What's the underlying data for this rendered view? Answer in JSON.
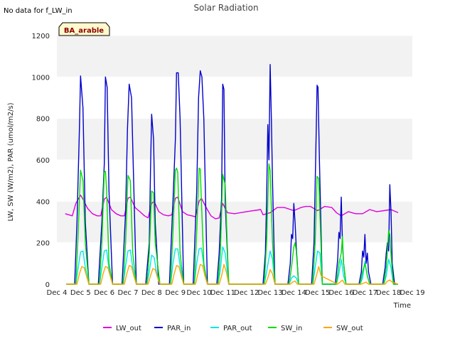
{
  "chart_data": {
    "type": "line",
    "title": "Solar Radiation",
    "no_data_text": "No data for f_LW_in",
    "badge": "BA_arable",
    "xlabel": "Time",
    "ylabel": "LW, SW (W/m2), PAR (umol/m2/s)",
    "xlim": [
      4,
      19
    ],
    "ylim": [
      0,
      1200
    ],
    "x_ticks": [
      4,
      5,
      6,
      7,
      8,
      9,
      10,
      11,
      12,
      13,
      14,
      15,
      16,
      17,
      18,
      19
    ],
    "x_tick_labels": [
      "Dec 4",
      "Dec 5",
      "Dec 6",
      "Dec 7",
      "Dec 8",
      "Dec 9",
      "Dec 10",
      "Dec 11",
      "Dec 12",
      "Dec 13",
      "Dec 14",
      "Dec 15",
      "Dec 16",
      "Dec 17",
      "Dec 18",
      "Dec 19"
    ],
    "y_ticks": [
      0,
      200,
      400,
      600,
      800,
      1000,
      1200
    ],
    "y_tick_labels": [
      "0",
      "200",
      "400",
      "600",
      "800",
      "1000",
      "1200"
    ],
    "colors": {
      "LW_out": "#dd00dd",
      "PAR_in": "#0000cc",
      "PAR_out": "#00e5ee",
      "SW_in": "#00dd00",
      "SW_out": "#ffa500"
    },
    "series": [
      {
        "name": "LW_out",
        "x": [
          4.35,
          4.5,
          4.65,
          4.8,
          5.0,
          5.1,
          5.3,
          5.5,
          5.7,
          5.85,
          6.0,
          6.1,
          6.3,
          6.5,
          6.7,
          6.85,
          7.0,
          7.1,
          7.3,
          7.5,
          7.7,
          7.85,
          8.0,
          8.1,
          8.3,
          8.5,
          8.7,
          8.85,
          9.0,
          9.1,
          9.3,
          9.5,
          9.7,
          9.85,
          10.0,
          10.1,
          10.3,
          10.5,
          10.7,
          10.85,
          11.0,
          11.2,
          11.5,
          12.0,
          12.6,
          12.7,
          13.0,
          13.3,
          13.6,
          14.0,
          14.3,
          14.5,
          14.7,
          15.0,
          15.3,
          15.6,
          15.8,
          16.0,
          16.3,
          16.6,
          16.9,
          17.2,
          17.5,
          17.8,
          18.1,
          18.4
        ],
        "y": [
          340,
          335,
          330,
          390,
          430,
          410,
          365,
          340,
          330,
          330,
          410,
          420,
          360,
          340,
          330,
          330,
          415,
          420,
          370,
          350,
          330,
          320,
          390,
          400,
          350,
          335,
          330,
          335,
          415,
          420,
          350,
          335,
          330,
          325,
          400,
          415,
          370,
          330,
          315,
          320,
          390,
          345,
          340,
          350,
          360,
          335,
          345,
          370,
          370,
          355,
          370,
          375,
          375,
          355,
          375,
          370,
          345,
          330,
          350,
          340,
          340,
          360,
          350,
          355,
          360,
          345
        ]
      },
      {
        "name": "PAR_in",
        "x": [
          4.4,
          4.75,
          4.85,
          4.95,
          5.0,
          5.1,
          5.2,
          5.35,
          5.75,
          5.9,
          6.0,
          6.05,
          6.12,
          6.2,
          6.35,
          6.75,
          6.9,
          6.98,
          7.05,
          7.15,
          7.35,
          7.75,
          7.9,
          7.95,
          8.0,
          8.08,
          8.15,
          8.3,
          8.75,
          8.9,
          9.0,
          9.05,
          9.12,
          9.2,
          9.35,
          9.75,
          9.9,
          9.98,
          10.05,
          10.12,
          10.2,
          10.35,
          10.75,
          10.85,
          10.95,
          11.0,
          11.05,
          11.1,
          11.25,
          12.7,
          12.8,
          12.85,
          12.9,
          12.95,
          13.0,
          13.05,
          13.1,
          13.2,
          13.75,
          13.85,
          13.9,
          13.95,
          14.0,
          14.05,
          14.1,
          14.2,
          14.75,
          14.85,
          14.92,
          14.98,
          15.02,
          15.08,
          15.2,
          15.75,
          15.85,
          15.9,
          15.95,
          16.0,
          16.05,
          16.1,
          16.2,
          16.75,
          16.85,
          16.9,
          16.95,
          17.0,
          17.05,
          17.1,
          17.15,
          17.25,
          17.75,
          17.85,
          17.9,
          17.95,
          18.0,
          18.05,
          18.1,
          18.15,
          18.25,
          18.4
        ],
        "y": [
          0,
          0,
          300,
          750,
          1005,
          850,
          300,
          0,
          0,
          300,
          580,
          1000,
          950,
          450,
          0,
          0,
          350,
          750,
          965,
          900,
          0,
          0,
          200,
          550,
          820,
          700,
          300,
          0,
          0,
          400,
          700,
          1020,
          1020,
          800,
          0,
          0,
          450,
          900,
          1030,
          1000,
          800,
          0,
          0,
          150,
          420,
          965,
          940,
          400,
          0,
          0,
          150,
          400,
          770,
          600,
          1060,
          800,
          500,
          0,
          0,
          100,
          240,
          220,
          390,
          300,
          180,
          0,
          0,
          200,
          600,
          960,
          950,
          600,
          0,
          0,
          120,
          250,
          220,
          420,
          200,
          100,
          0,
          0,
          60,
          160,
          130,
          240,
          100,
          150,
          60,
          0,
          0,
          80,
          150,
          200,
          160,
          480,
          350,
          100,
          0,
          0
        ]
      },
      {
        "name": "PAR_out",
        "x": [
          4.4,
          4.8,
          4.9,
          5.0,
          5.1,
          5.2,
          5.35,
          5.8,
          5.9,
          6.0,
          6.1,
          6.2,
          6.35,
          6.8,
          6.9,
          7.0,
          7.1,
          7.2,
          7.35,
          7.8,
          7.9,
          8.0,
          8.1,
          8.2,
          8.35,
          8.8,
          8.9,
          9.0,
          9.1,
          9.2,
          9.35,
          9.8,
          9.9,
          10.0,
          10.1,
          10.2,
          10.35,
          10.8,
          10.9,
          11.0,
          11.1,
          11.25,
          12.75,
          12.85,
          13.0,
          13.1,
          13.2,
          13.8,
          13.9,
          14.0,
          14.1,
          14.2,
          14.8,
          14.9,
          15.0,
          15.1,
          15.2,
          15.8,
          15.9,
          16.0,
          16.1,
          16.2,
          16.8,
          16.9,
          17.0,
          17.1,
          17.2,
          17.8,
          17.9,
          18.0,
          18.1,
          18.2,
          18.4
        ],
        "y": [
          0,
          0,
          80,
          155,
          160,
          80,
          0,
          0,
          80,
          160,
          165,
          70,
          0,
          0,
          90,
          160,
          165,
          80,
          0,
          0,
          60,
          140,
          130,
          60,
          0,
          0,
          100,
          170,
          170,
          90,
          0,
          0,
          100,
          170,
          175,
          90,
          0,
          0,
          70,
          180,
          150,
          0,
          0,
          60,
          160,
          120,
          0,
          0,
          30,
          40,
          30,
          0,
          0,
          80,
          160,
          150,
          0,
          0,
          50,
          120,
          40,
          0,
          0,
          30,
          110,
          40,
          0,
          0,
          40,
          120,
          80,
          0,
          0
        ]
      },
      {
        "name": "SW_in",
        "x": [
          4.4,
          4.8,
          4.9,
          5.0,
          5.1,
          5.2,
          5.35,
          5.8,
          5.9,
          6.0,
          6.05,
          6.1,
          6.2,
          6.35,
          6.8,
          6.9,
          7.0,
          7.1,
          7.2,
          7.35,
          7.8,
          7.9,
          8.0,
          8.08,
          8.15,
          8.35,
          8.8,
          8.9,
          9.0,
          9.05,
          9.1,
          9.2,
          9.35,
          9.8,
          9.9,
          10.0,
          10.05,
          10.1,
          10.2,
          10.35,
          10.8,
          10.9,
          11.0,
          11.1,
          11.25,
          12.75,
          12.85,
          12.95,
          13.0,
          13.1,
          13.2,
          13.8,
          13.9,
          14.0,
          14.05,
          14.1,
          14.2,
          14.8,
          14.9,
          14.98,
          15.05,
          15.2,
          15.8,
          15.9,
          16.0,
          16.05,
          16.1,
          16.2,
          16.8,
          16.9,
          17.0,
          17.1,
          17.2,
          17.8,
          17.9,
          17.95,
          18.0,
          18.05,
          18.1,
          18.2,
          18.4
        ],
        "y": [
          0,
          0,
          250,
          550,
          500,
          200,
          0,
          0,
          200,
          540,
          545,
          450,
          100,
          0,
          0,
          200,
          525,
          500,
          150,
          0,
          0,
          150,
          450,
          440,
          200,
          0,
          0,
          250,
          550,
          560,
          540,
          150,
          0,
          0,
          250,
          560,
          555,
          400,
          100,
          0,
          0,
          150,
          530,
          480,
          0,
          0,
          200,
          580,
          550,
          200,
          0,
          0,
          80,
          180,
          200,
          160,
          0,
          0,
          200,
          520,
          510,
          0,
          0,
          100,
          150,
          230,
          100,
          0,
          0,
          60,
          100,
          40,
          0,
          0,
          80,
          160,
          260,
          240,
          140,
          0,
          0
        ]
      },
      {
        "name": "SW_out",
        "x": [
          4.4,
          4.85,
          4.95,
          5.05,
          5.15,
          5.25,
          5.35,
          5.85,
          5.95,
          6.05,
          6.15,
          6.25,
          6.35,
          6.85,
          6.95,
          7.05,
          7.15,
          7.25,
          7.35,
          7.85,
          7.95,
          8.05,
          8.15,
          8.25,
          8.35,
          8.85,
          8.95,
          9.05,
          9.15,
          9.25,
          9.35,
          9.85,
          9.95,
          10.05,
          10.15,
          10.25,
          10.35,
          10.85,
          10.95,
          11.05,
          11.15,
          11.25,
          12.8,
          12.9,
          13.0,
          13.1,
          13.2,
          13.85,
          13.95,
          14.05,
          14.15,
          14.85,
          14.95,
          15.05,
          15.15,
          15.85,
          15.95,
          16.05,
          16.15,
          16.85,
          16.95,
          17.05,
          17.15,
          17.85,
          17.95,
          18.05,
          18.15,
          18.4
        ],
        "y": [
          0,
          0,
          50,
          85,
          80,
          40,
          0,
          0,
          50,
          85,
          80,
          40,
          0,
          0,
          50,
          90,
          85,
          40,
          0,
          0,
          40,
          75,
          70,
          30,
          0,
          0,
          50,
          90,
          85,
          40,
          0,
          0,
          50,
          95,
          90,
          40,
          0,
          0,
          40,
          95,
          60,
          0,
          0,
          30,
          70,
          50,
          0,
          0,
          10,
          15,
          0,
          0,
          40,
          85,
          40,
          0,
          10,
          20,
          0,
          0,
          5,
          10,
          0,
          0,
          15,
          20,
          10,
          0
        ]
      }
    ]
  }
}
